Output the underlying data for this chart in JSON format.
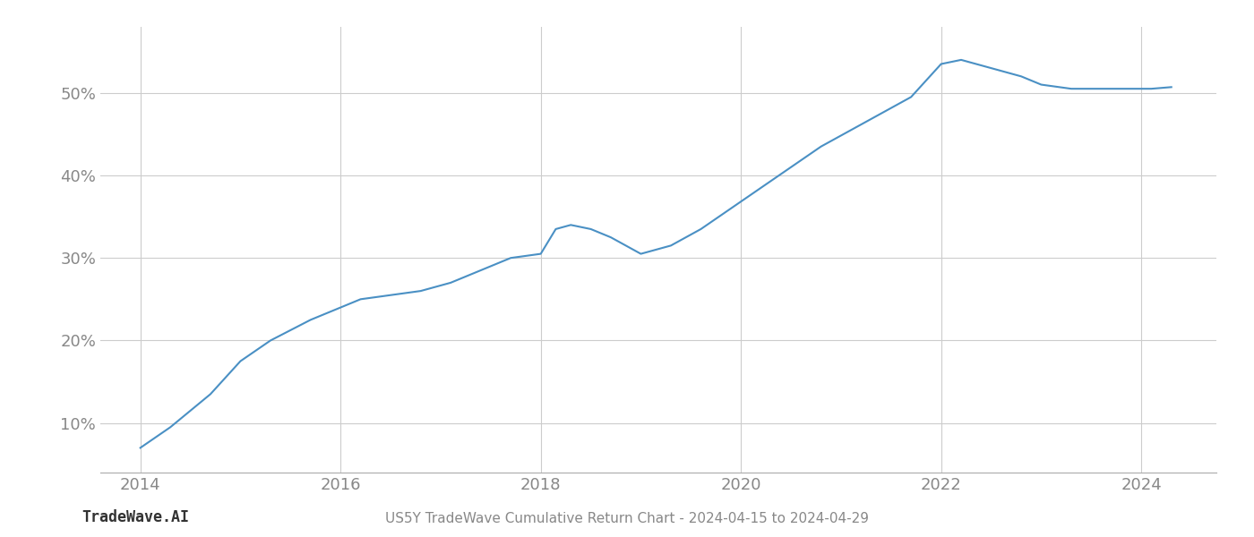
{
  "title": "US5Y TradeWave Cumulative Return Chart - 2024-04-15 to 2024-04-29",
  "watermark": "TradeWave.AI",
  "line_color": "#4a90c4",
  "background_color": "#ffffff",
  "grid_color": "#cccccc",
  "x_values": [
    2014.0,
    2014.3,
    2014.7,
    2015.0,
    2015.3,
    2015.7,
    2016.0,
    2016.2,
    2016.5,
    2016.8,
    2017.1,
    2017.4,
    2017.7,
    2018.0,
    2018.15,
    2018.3,
    2018.5,
    2018.7,
    2019.0,
    2019.3,
    2019.6,
    2019.9,
    2020.2,
    2020.5,
    2020.8,
    2021.1,
    2021.4,
    2021.7,
    2022.0,
    2022.2,
    2022.5,
    2022.8,
    2023.0,
    2023.3,
    2023.6,
    2023.9,
    2024.1,
    2024.3
  ],
  "y_values": [
    7.0,
    9.5,
    13.5,
    17.5,
    20.0,
    22.5,
    24.0,
    25.0,
    25.5,
    26.0,
    27.0,
    28.5,
    30.0,
    30.5,
    33.5,
    34.0,
    33.5,
    32.5,
    30.5,
    31.5,
    33.5,
    36.0,
    38.5,
    41.0,
    43.5,
    45.5,
    47.5,
    49.5,
    53.5,
    54.0,
    53.0,
    52.0,
    51.0,
    50.5,
    50.5,
    50.5,
    50.5,
    50.7
  ],
  "xlim": [
    2013.6,
    2024.75
  ],
  "ylim": [
    4,
    58
  ],
  "yticks": [
    10,
    20,
    30,
    40,
    50
  ],
  "xticks": [
    2014,
    2016,
    2018,
    2020,
    2022,
    2024
  ],
  "tick_fontsize": 13,
  "title_fontsize": 11,
  "watermark_fontsize": 12,
  "line_width": 1.5
}
